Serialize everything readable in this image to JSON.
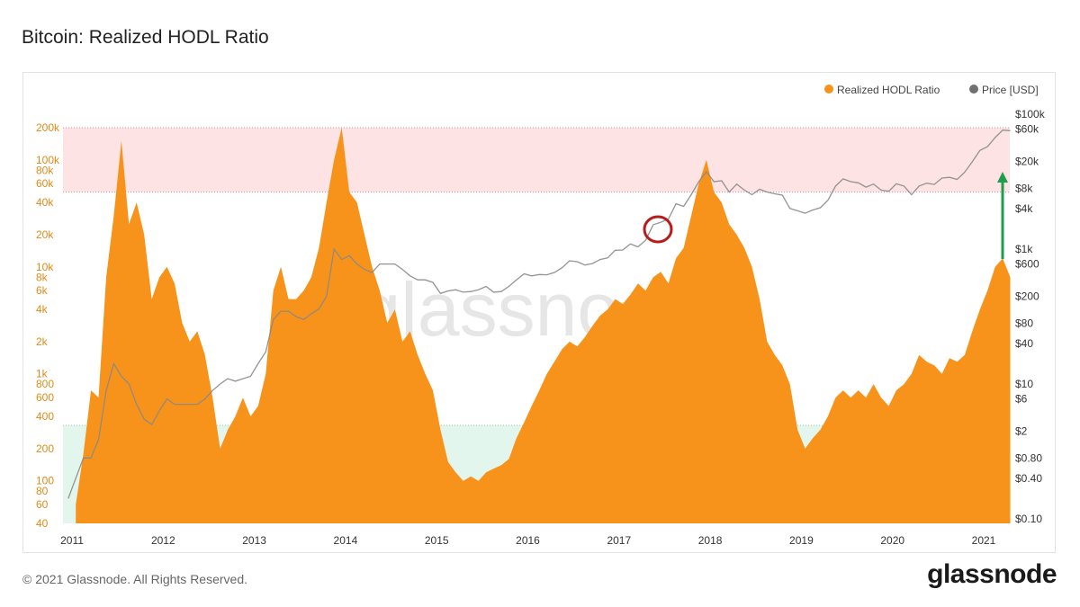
{
  "page": {
    "title": "Bitcoin: Realized HODL Ratio"
  },
  "footer": {
    "copyright": "© 2021 Glassnode. All Rights Reserved.",
    "brand": "glassnode"
  },
  "watermark": "glassnode",
  "colors": {
    "rhodl": "#F7931A",
    "price": "#888888",
    "legend_price": "#707070",
    "overheated_band": "#fde3e3",
    "undervalued_band": "#e3f6ee",
    "annotation_circle": "#b71c1c",
    "annotation_arrow": "#1e9e4a"
  },
  "chart_data": {
    "type": "area",
    "title": "Bitcoin: Realized HODL Ratio",
    "legend": {
      "placement": "top-right",
      "items": [
        "Realized HODL Ratio",
        "Price [USD]"
      ]
    },
    "x_ticks": [
      "2011",
      "2012",
      "2013",
      "2014",
      "2015",
      "2016",
      "2017",
      "2018",
      "2019",
      "2020",
      "2021"
    ],
    "y_left": {
      "scale": "log",
      "range": [
        40,
        200000
      ],
      "tick_values": [
        40,
        60,
        80,
        100,
        200,
        400,
        600,
        800,
        1000,
        2000,
        4000,
        6000,
        8000,
        10000,
        20000,
        40000,
        60000,
        80000,
        100000,
        200000
      ],
      "tick_labels": [
        "40",
        "60",
        "80",
        "100",
        "200",
        "400",
        "600",
        "800",
        "1k",
        "2k",
        "4k",
        "6k",
        "8k",
        "10k",
        "20k",
        "40k",
        "60k",
        "80k",
        "100k",
        "200k"
      ]
    },
    "y_right": {
      "scale": "log",
      "range": [
        0.1,
        100000
      ],
      "tick_values": [
        0.1,
        0.4,
        0.8,
        2,
        6,
        10,
        40,
        80,
        200,
        600,
        1000,
        4000,
        8000,
        20000,
        60000,
        100000
      ],
      "tick_labels": [
        "$0.10",
        "$0.40",
        "$0.80",
        "$2",
        "$6",
        "$10",
        "$40",
        "$80",
        "$200",
        "$600",
        "$1k",
        "$4k",
        "$8k",
        "$20k",
        "$60k",
        "$100k"
      ]
    },
    "bands": [
      {
        "from": 50000,
        "to": 200000,
        "zone": "overheated"
      },
      {
        "from": 40,
        "to": 330,
        "zone": "undervalued"
      }
    ],
    "series": [
      {
        "name": "Realized HODL Ratio",
        "axis": "left",
        "points": [
          [
            "2011-01",
            60
          ],
          [
            "2011-02",
            180
          ],
          [
            "2011-03",
            700
          ],
          [
            "2011-04",
            600
          ],
          [
            "2011-05",
            8000
          ],
          [
            "2011-06",
            30000
          ],
          [
            "2011-07",
            150000
          ],
          [
            "2011-08",
            25000
          ],
          [
            "2011-09",
            40000
          ],
          [
            "2011-10",
            20000
          ],
          [
            "2011-11",
            5000
          ],
          [
            "2011-12",
            8000
          ],
          [
            "2012-01",
            10000
          ],
          [
            "2012-02",
            7000
          ],
          [
            "2012-03",
            3000
          ],
          [
            "2012-04",
            2000
          ],
          [
            "2012-05",
            2500
          ],
          [
            "2012-06",
            1500
          ],
          [
            "2012-07",
            600
          ],
          [
            "2012-08",
            200
          ],
          [
            "2012-09",
            300
          ],
          [
            "2012-10",
            400
          ],
          [
            "2012-11",
            600
          ],
          [
            "2012-12",
            400
          ],
          [
            "2013-01",
            500
          ],
          [
            "2013-02",
            1000
          ],
          [
            "2013-03",
            6000
          ],
          [
            "2013-04",
            10000
          ],
          [
            "2013-05",
            5000
          ],
          [
            "2013-06",
            5000
          ],
          [
            "2013-07",
            6000
          ],
          [
            "2013-08",
            8000
          ],
          [
            "2013-09",
            15000
          ],
          [
            "2013-10",
            40000
          ],
          [
            "2013-11",
            100000
          ],
          [
            "2013-12",
            200000
          ],
          [
            "2014-01",
            50000
          ],
          [
            "2014-02",
            40000
          ],
          [
            "2014-03",
            20000
          ],
          [
            "2014-04",
            10000
          ],
          [
            "2014-05",
            6000
          ],
          [
            "2014-06",
            3000
          ],
          [
            "2014-07",
            4000
          ],
          [
            "2014-08",
            2000
          ],
          [
            "2014-09",
            2500
          ],
          [
            "2014-10",
            1500
          ],
          [
            "2014-11",
            1000
          ],
          [
            "2014-12",
            700
          ],
          [
            "2015-01",
            300
          ],
          [
            "2015-02",
            150
          ],
          [
            "2015-03",
            120
          ],
          [
            "2015-04",
            100
          ],
          [
            "2015-05",
            110
          ],
          [
            "2015-06",
            100
          ],
          [
            "2015-07",
            120
          ],
          [
            "2015-08",
            130
          ],
          [
            "2015-09",
            140
          ],
          [
            "2015-10",
            160
          ],
          [
            "2015-11",
            250
          ],
          [
            "2015-12",
            350
          ],
          [
            "2016-01",
            500
          ],
          [
            "2016-02",
            700
          ],
          [
            "2016-03",
            1000
          ],
          [
            "2016-04",
            1300
          ],
          [
            "2016-05",
            1700
          ],
          [
            "2016-06",
            2000
          ],
          [
            "2016-07",
            1800
          ],
          [
            "2016-08",
            2200
          ],
          [
            "2016-09",
            2800
          ],
          [
            "2016-10",
            3500
          ],
          [
            "2016-11",
            4000
          ],
          [
            "2016-12",
            5000
          ],
          [
            "2017-01",
            4500
          ],
          [
            "2017-02",
            5500
          ],
          [
            "2017-03",
            7000
          ],
          [
            "2017-04",
            6000
          ],
          [
            "2017-05",
            8000
          ],
          [
            "2017-06",
            9000
          ],
          [
            "2017-07",
            7000
          ],
          [
            "2017-08",
            12000
          ],
          [
            "2017-09",
            15000
          ],
          [
            "2017-10",
            30000
          ],
          [
            "2017-11",
            60000
          ],
          [
            "2017-12",
            100000
          ],
          [
            "2018-01",
            50000
          ],
          [
            "2018-02",
            40000
          ],
          [
            "2018-03",
            25000
          ],
          [
            "2018-04",
            20000
          ],
          [
            "2018-05",
            15000
          ],
          [
            "2018-06",
            10000
          ],
          [
            "2018-07",
            5000
          ],
          [
            "2018-08",
            2000
          ],
          [
            "2018-09",
            1500
          ],
          [
            "2018-10",
            1200
          ],
          [
            "2018-11",
            800
          ],
          [
            "2018-12",
            300
          ],
          [
            "2019-01",
            200
          ],
          [
            "2019-02",
            250
          ],
          [
            "2019-03",
            300
          ],
          [
            "2019-04",
            400
          ],
          [
            "2019-05",
            600
          ],
          [
            "2019-06",
            700
          ],
          [
            "2019-07",
            600
          ],
          [
            "2019-08",
            700
          ],
          [
            "2019-09",
            600
          ],
          [
            "2019-10",
            800
          ],
          [
            "2019-11",
            600
          ],
          [
            "2019-12",
            500
          ],
          [
            "2020-01",
            700
          ],
          [
            "2020-02",
            800
          ],
          [
            "2020-03",
            1000
          ],
          [
            "2020-04",
            1500
          ],
          [
            "2020-05",
            1300
          ],
          [
            "2020-06",
            1200
          ],
          [
            "2020-07",
            1000
          ],
          [
            "2020-08",
            1400
          ],
          [
            "2020-09",
            1300
          ],
          [
            "2020-10",
            1500
          ],
          [
            "2020-11",
            2500
          ],
          [
            "2020-12",
            4000
          ],
          [
            "2021-01",
            6000
          ],
          [
            "2021-02",
            10000
          ],
          [
            "2021-03",
            12000
          ],
          [
            "2021-04",
            8000
          ]
        ]
      },
      {
        "name": "Price [USD]",
        "axis": "right",
        "points": [
          [
            "2010-12",
            0.2
          ],
          [
            "2011-01",
            0.4
          ],
          [
            "2011-02",
            0.8
          ],
          [
            "2011-03",
            0.8
          ],
          [
            "2011-04",
            1.5
          ],
          [
            "2011-05",
            8
          ],
          [
            "2011-06",
            20
          ],
          [
            "2011-07",
            13
          ],
          [
            "2011-08",
            10
          ],
          [
            "2011-09",
            5
          ],
          [
            "2011-10",
            3
          ],
          [
            "2011-11",
            2.5
          ],
          [
            "2011-12",
            4
          ],
          [
            "2012-01",
            6
          ],
          [
            "2012-02",
            5
          ],
          [
            "2012-03",
            5
          ],
          [
            "2012-04",
            5
          ],
          [
            "2012-05",
            5
          ],
          [
            "2012-06",
            6
          ],
          [
            "2012-07",
            8
          ],
          [
            "2012-08",
            10
          ],
          [
            "2012-09",
            12
          ],
          [
            "2012-10",
            11
          ],
          [
            "2012-11",
            12
          ],
          [
            "2012-12",
            13
          ],
          [
            "2013-01",
            20
          ],
          [
            "2013-02",
            30
          ],
          [
            "2013-03",
            90
          ],
          [
            "2013-04",
            120
          ],
          [
            "2013-05",
            120
          ],
          [
            "2013-06",
            100
          ],
          [
            "2013-07",
            90
          ],
          [
            "2013-08",
            110
          ],
          [
            "2013-09",
            130
          ],
          [
            "2013-10",
            200
          ],
          [
            "2013-11",
            1000
          ],
          [
            "2013-12",
            700
          ],
          [
            "2014-01",
            800
          ],
          [
            "2014-02",
            600
          ],
          [
            "2014-03",
            500
          ],
          [
            "2014-04",
            450
          ],
          [
            "2014-05",
            600
          ],
          [
            "2014-06",
            600
          ],
          [
            "2014-07",
            600
          ],
          [
            "2014-08",
            500
          ],
          [
            "2014-09",
            400
          ],
          [
            "2014-10",
            350
          ],
          [
            "2014-11",
            350
          ],
          [
            "2014-12",
            320
          ],
          [
            "2015-01",
            220
          ],
          [
            "2015-02",
            240
          ],
          [
            "2015-03",
            250
          ],
          [
            "2015-04",
            230
          ],
          [
            "2015-05",
            235
          ],
          [
            "2015-06",
            250
          ],
          [
            "2015-07",
            280
          ],
          [
            "2015-08",
            230
          ],
          [
            "2015-09",
            235
          ],
          [
            "2015-10",
            280
          ],
          [
            "2015-11",
            350
          ],
          [
            "2015-12",
            430
          ],
          [
            "2016-01",
            400
          ],
          [
            "2016-02",
            420
          ],
          [
            "2016-03",
            415
          ],
          [
            "2016-04",
            450
          ],
          [
            "2016-05",
            530
          ],
          [
            "2016-06",
            670
          ],
          [
            "2016-07",
            650
          ],
          [
            "2016-08",
            580
          ],
          [
            "2016-09",
            610
          ],
          [
            "2016-10",
            700
          ],
          [
            "2016-11",
            740
          ],
          [
            "2016-12",
            960
          ],
          [
            "2017-01",
            970
          ],
          [
            "2017-02",
            1190
          ],
          [
            "2017-03",
            1080
          ],
          [
            "2017-04",
            1350
          ],
          [
            "2017-05",
            2300
          ],
          [
            "2017-06",
            2500
          ],
          [
            "2017-07",
            2800
          ],
          [
            "2017-08",
            4700
          ],
          [
            "2017-09",
            4300
          ],
          [
            "2017-10",
            6400
          ],
          [
            "2017-11",
            10000
          ],
          [
            "2017-12",
            14000
          ],
          [
            "2018-01",
            10000
          ],
          [
            "2018-02",
            10300
          ],
          [
            "2018-03",
            7000
          ],
          [
            "2018-04",
            9200
          ],
          [
            "2018-05",
            7500
          ],
          [
            "2018-06",
            6400
          ],
          [
            "2018-07",
            7700
          ],
          [
            "2018-08",
            7000
          ],
          [
            "2018-09",
            6600
          ],
          [
            "2018-10",
            6300
          ],
          [
            "2018-11",
            4000
          ],
          [
            "2018-12",
            3700
          ],
          [
            "2019-01",
            3400
          ],
          [
            "2019-02",
            3800
          ],
          [
            "2019-03",
            4100
          ],
          [
            "2019-04",
            5300
          ],
          [
            "2019-05",
            8600
          ],
          [
            "2019-06",
            11000
          ],
          [
            "2019-07",
            10000
          ],
          [
            "2019-08",
            9600
          ],
          [
            "2019-09",
            8300
          ],
          [
            "2019-10",
            9200
          ],
          [
            "2019-11",
            7500
          ],
          [
            "2019-12",
            7200
          ],
          [
            "2020-01",
            9300
          ],
          [
            "2020-02",
            8600
          ],
          [
            "2020-03",
            6400
          ],
          [
            "2020-04",
            8600
          ],
          [
            "2020-05",
            9500
          ],
          [
            "2020-06",
            9100
          ],
          [
            "2020-07",
            11300
          ],
          [
            "2020-08",
            11600
          ],
          [
            "2020-09",
            10800
          ],
          [
            "2020-10",
            13800
          ],
          [
            "2020-11",
            19700
          ],
          [
            "2020-12",
            29000
          ],
          [
            "2021-01",
            33000
          ],
          [
            "2021-02",
            45000
          ],
          [
            "2021-03",
            58000
          ],
          [
            "2021-04",
            57000
          ]
        ]
      }
    ]
  }
}
